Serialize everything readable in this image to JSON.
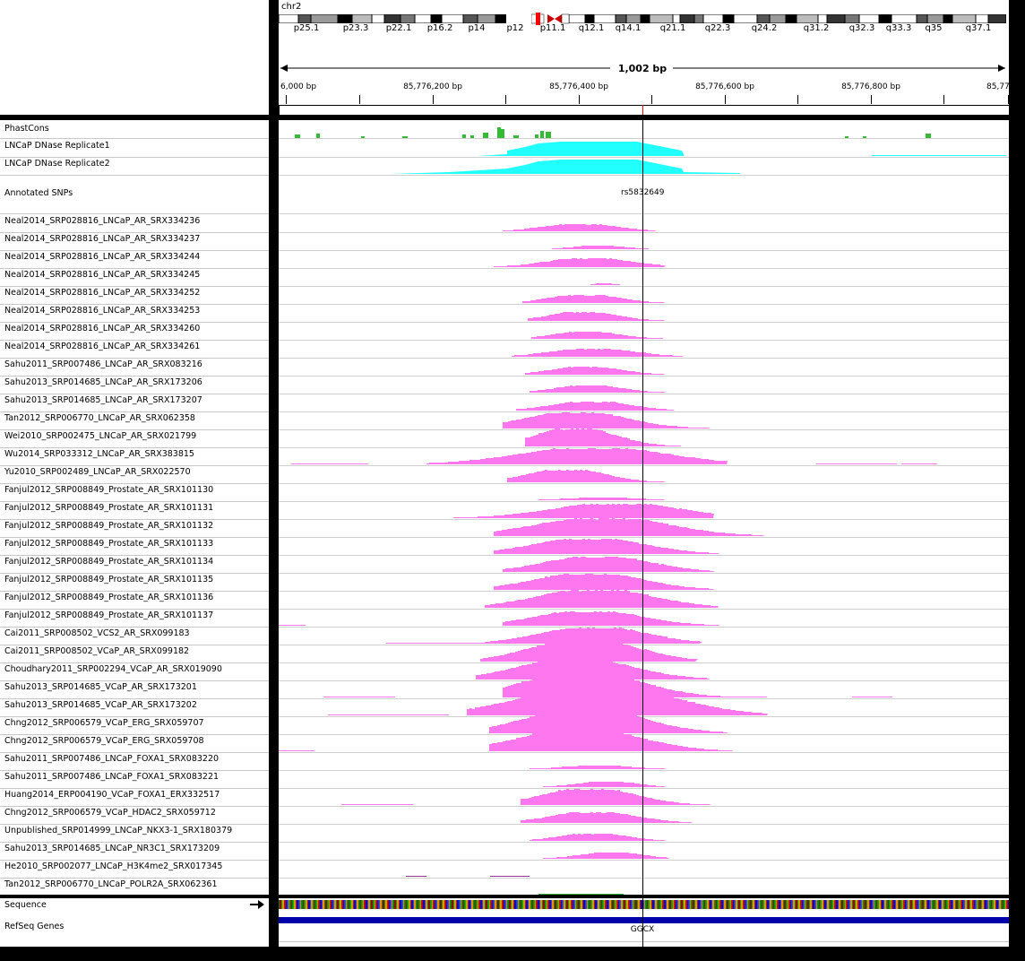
{
  "header": {
    "chromosome": "chr2",
    "span_label": "1,002 bp",
    "coordinate_labels": [
      "6,000 bp",
      "85,776,200 bp",
      "85,776,400 bp",
      "85,776,600 bp",
      "85,776,800 bp",
      "85,77"
    ],
    "cytobands": [
      "p25.1",
      "p23.3",
      "p22.1",
      "p16.2",
      "p14",
      "p12",
      "p11.1",
      "q12.1",
      "q14.1",
      "q21.1",
      "q22.3",
      "q24.2",
      "q31.2",
      "q32.3",
      "q33.3",
      "q35",
      "q37.1"
    ]
  },
  "colors": {
    "conservation": "#33bb33",
    "dnase": "#22ffff",
    "chip": "#ff77ee",
    "chip_dark": "#993399",
    "refseq": "#0000a8",
    "highlight": "#ff0000"
  },
  "tracks": {
    "phastcons": "PhastCons",
    "dnase": [
      "LNCaP DNase Replicate1",
      "LNCaP DNase Replicate2"
    ],
    "snps": "Annotated SNPs",
    "snp_label": "rs5832649",
    "chip": [
      "Neal2014_SRP028816_LNCaP_AR_SRX334236",
      "Neal2014_SRP028816_LNCaP_AR_SRX334237",
      "Neal2014_SRP028816_LNCaP_AR_SRX334244",
      "Neal2014_SRP028816_LNCaP_AR_SRX334245",
      "Neal2014_SRP028816_LNCaP_AR_SRX334252",
      "Neal2014_SRP028816_LNCaP_AR_SRX334253",
      "Neal2014_SRP028816_LNCaP_AR_SRX334260",
      "Neal2014_SRP028816_LNCaP_AR_SRX334261",
      "Sahu2011_SRP007486_LNCaP_AR_SRX083216",
      "Sahu2013_SRP014685_LNCaP_AR_SRX173206",
      "Sahu2013_SRP014685_LNCaP_AR_SRX173207",
      "Tan2012_SRP006770_LNCaP_AR_SRX062358",
      "Wei2010_SRP002475_LNCaP_AR_SRX021799",
      "Wu2014_SRP033312_LNCaP_AR_SRX383815",
      "Yu2010_SRP002489_LNCaP_AR_SRX022570",
      "Fanjul2012_SRP008849_Prostate_AR_SRX101130",
      "Fanjul2012_SRP008849_Prostate_AR_SRX101131",
      "Fanjul2012_SRP008849_Prostate_AR_SRX101132",
      "Fanjul2012_SRP008849_Prostate_AR_SRX101133",
      "Fanjul2012_SRP008849_Prostate_AR_SRX101134",
      "Fanjul2012_SRP008849_Prostate_AR_SRX101135",
      "Fanjul2012_SRP008849_Prostate_AR_SRX101136",
      "Fanjul2012_SRP008849_Prostate_AR_SRX101137",
      "Cai2011_SRP008502_VCS2_AR_SRX099183",
      "Cai2011_SRP008502_VCaP_AR_SRX099182",
      "Choudhary2011_SRP002294_VCaP_AR_SRX019090",
      "Sahu2013_SRP014685_VCaP_AR_SRX173201",
      "Sahu2013_SRP014685_VCaP_AR_SRX173202",
      "Chng2012_SRP006579_VCaP_ERG_SRX059707",
      "Chng2012_SRP006579_VCaP_ERG_SRX059708",
      "Sahu2011_SRP007486_LNCaP_FOXA1_SRX083220",
      "Sahu2011_SRP007486_LNCaP_FOXA1_SRX083221",
      "Huang2014_ERP004190_VCaP_FOXA1_ERX332517",
      "Chng2012_SRP006579_VCaP_HDAC2_SRX059712",
      "Unpublished_SRP014999_LNCaP_NKX3-1_SRX180379",
      "Sahu2013_SRP014685_LNCaP_NR3C1_SRX173209",
      "He2010_SRP002077_LNCaP_H3K4me2_SRX017345",
      "Tan2012_SRP006770_LNCaP_POLR2A_SRX062361"
    ],
    "sequence": "Sequence",
    "refseq": "RefSeq Genes",
    "gene_label": "GGCX"
  }
}
